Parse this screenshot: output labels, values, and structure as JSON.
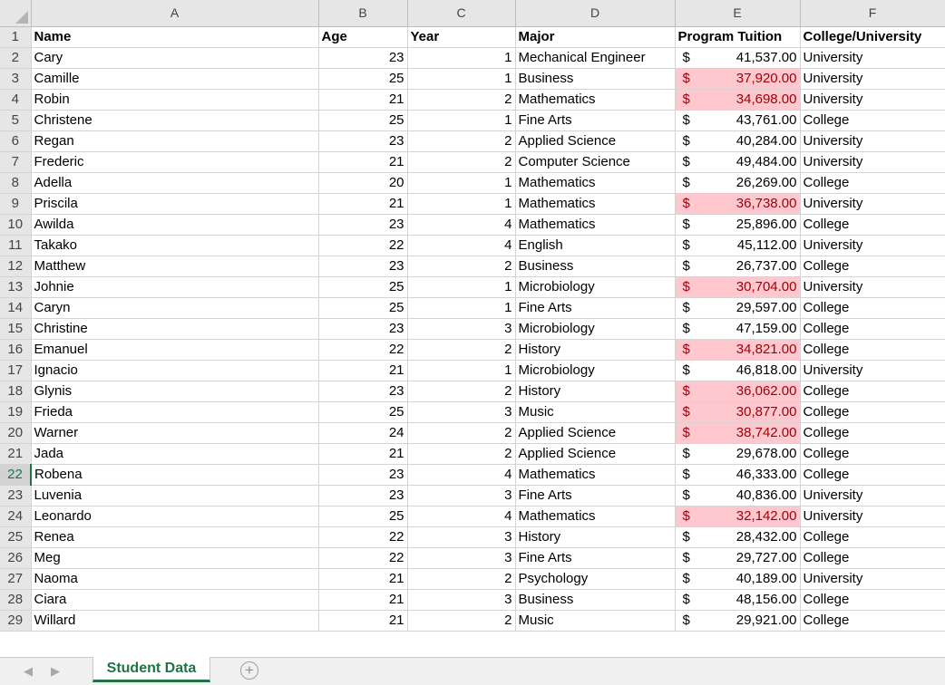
{
  "columns": [
    "A",
    "B",
    "C",
    "D",
    "E",
    "F"
  ],
  "headers": {
    "name": "Name",
    "age": "Age",
    "year": "Year",
    "major": "Major",
    "tuition": "Program Tuition",
    "college": "College/University"
  },
  "currency_symbol": "$",
  "highlight_fill": "#ffc7ce",
  "highlight_text": "#9c0006",
  "active_row": 22,
  "rows": [
    {
      "name": "Cary",
      "age": "23",
      "year": "1",
      "major": "Mechanical Engineer",
      "tuition": "41,537.00",
      "college": "University",
      "hl": false
    },
    {
      "name": "Camille",
      "age": "25",
      "year": "1",
      "major": "Business",
      "tuition": "37,920.00",
      "college": "University",
      "hl": true
    },
    {
      "name": "Robin",
      "age": "21",
      "year": "2",
      "major": "Mathematics",
      "tuition": "34,698.00",
      "college": "University",
      "hl": true
    },
    {
      "name": "Christene",
      "age": "25",
      "year": "1",
      "major": "Fine Arts",
      "tuition": "43,761.00",
      "college": "College",
      "hl": false
    },
    {
      "name": "Regan",
      "age": "23",
      "year": "2",
      "major": "Applied Science",
      "tuition": "40,284.00",
      "college": "University",
      "hl": false
    },
    {
      "name": "Frederic",
      "age": "21",
      "year": "2",
      "major": "Computer Science",
      "tuition": "49,484.00",
      "college": "University",
      "hl": false
    },
    {
      "name": "Adella",
      "age": "20",
      "year": "1",
      "major": "Mathematics",
      "tuition": "26,269.00",
      "college": "College",
      "hl": false
    },
    {
      "name": "Priscila",
      "age": "21",
      "year": "1",
      "major": "Mathematics",
      "tuition": "36,738.00",
      "college": "University",
      "hl": true
    },
    {
      "name": "Awilda",
      "age": "23",
      "year": "4",
      "major": "Mathematics",
      "tuition": "25,896.00",
      "college": "College",
      "hl": false
    },
    {
      "name": "Takako",
      "age": "22",
      "year": "4",
      "major": "English",
      "tuition": "45,112.00",
      "college": "University",
      "hl": false
    },
    {
      "name": "Matthew",
      "age": "23",
      "year": "2",
      "major": "Business",
      "tuition": "26,737.00",
      "college": "College",
      "hl": false
    },
    {
      "name": "Johnie",
      "age": "25",
      "year": "1",
      "major": "Microbiology",
      "tuition": "30,704.00",
      "college": "University",
      "hl": true
    },
    {
      "name": "Caryn",
      "age": "25",
      "year": "1",
      "major": "Fine Arts",
      "tuition": "29,597.00",
      "college": "College",
      "hl": false
    },
    {
      "name": "Christine",
      "age": "23",
      "year": "3",
      "major": "Microbiology",
      "tuition": "47,159.00",
      "college": "College",
      "hl": false
    },
    {
      "name": "Emanuel",
      "age": "22",
      "year": "2",
      "major": "History",
      "tuition": "34,821.00",
      "college": "College",
      "hl": true
    },
    {
      "name": "Ignacio",
      "age": "21",
      "year": "1",
      "major": "Microbiology",
      "tuition": "46,818.00",
      "college": "University",
      "hl": false
    },
    {
      "name": "Glynis",
      "age": "23",
      "year": "2",
      "major": "History",
      "tuition": "36,062.00",
      "college": "College",
      "hl": true
    },
    {
      "name": "Frieda",
      "age": "25",
      "year": "3",
      "major": "Music",
      "tuition": "30,877.00",
      "college": "College",
      "hl": true
    },
    {
      "name": "Warner",
      "age": "24",
      "year": "2",
      "major": "Applied Science",
      "tuition": "38,742.00",
      "college": "College",
      "hl": true
    },
    {
      "name": "Jada",
      "age": "21",
      "year": "2",
      "major": "Applied Science",
      "tuition": "29,678.00",
      "college": "College",
      "hl": false
    },
    {
      "name": "Robena",
      "age": "23",
      "year": "4",
      "major": "Mathematics",
      "tuition": "46,333.00",
      "college": "College",
      "hl": false
    },
    {
      "name": "Luvenia",
      "age": "23",
      "year": "3",
      "major": "Fine Arts",
      "tuition": "40,836.00",
      "college": "University",
      "hl": false
    },
    {
      "name": "Leonardo",
      "age": "25",
      "year": "4",
      "major": "Mathematics",
      "tuition": "32,142.00",
      "college": "University",
      "hl": true
    },
    {
      "name": "Renea",
      "age": "22",
      "year": "3",
      "major": "History",
      "tuition": "28,432.00",
      "college": "College",
      "hl": false
    },
    {
      "name": "Meg",
      "age": "22",
      "year": "3",
      "major": "Fine Arts",
      "tuition": "29,727.00",
      "college": "College",
      "hl": false
    },
    {
      "name": "Naoma",
      "age": "21",
      "year": "2",
      "major": "Psychology",
      "tuition": "40,189.00",
      "college": "University",
      "hl": false
    },
    {
      "name": "Ciara",
      "age": "21",
      "year": "3",
      "major": "Business",
      "tuition": "48,156.00",
      "college": "College",
      "hl": false
    },
    {
      "name": "Willard",
      "age": "21",
      "year": "2",
      "major": "Music",
      "tuition": "29,921.00",
      "college": "College",
      "hl": false
    }
  ],
  "tabs": {
    "active": "Student Data",
    "add_label": "+",
    "prev": "◀",
    "next": "▶"
  }
}
